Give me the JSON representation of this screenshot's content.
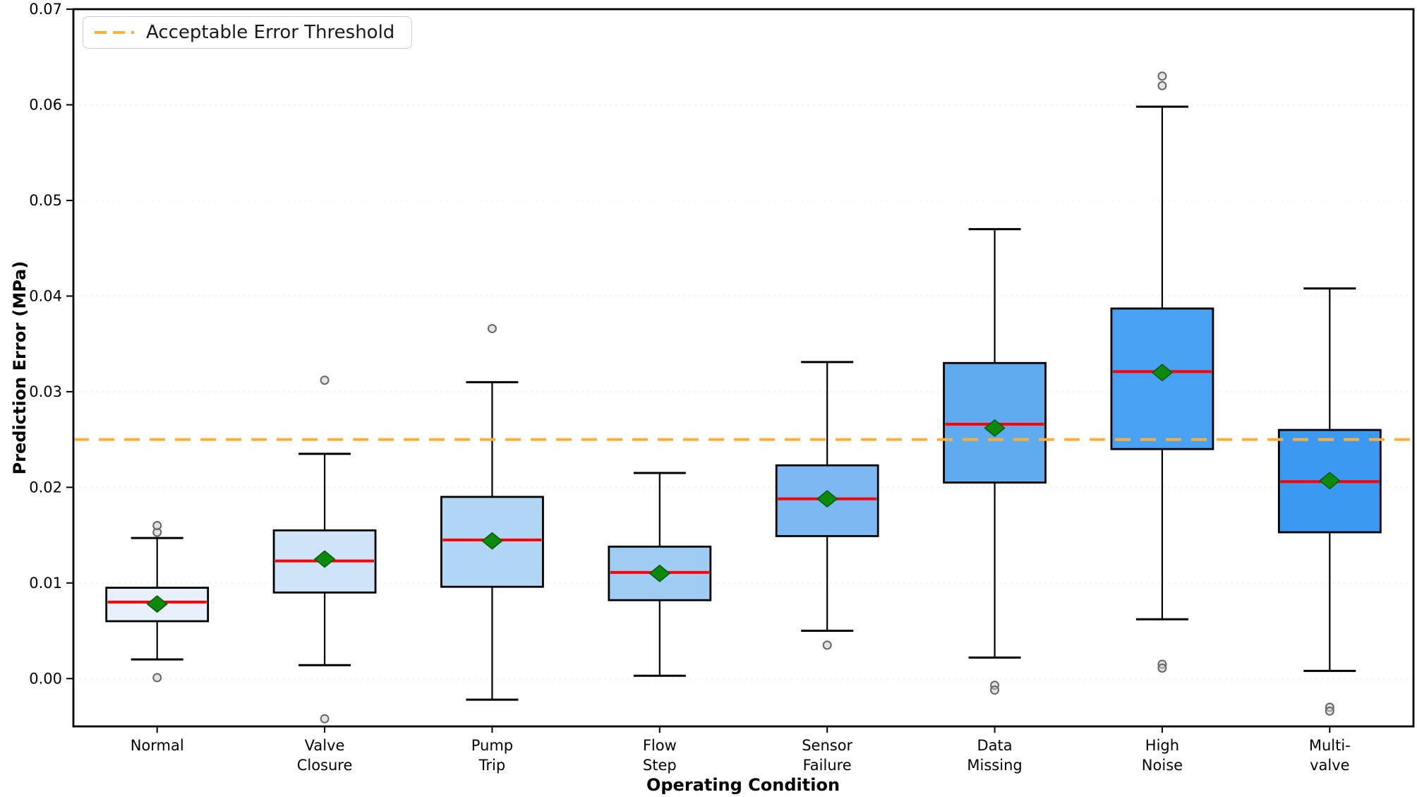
{
  "chart_data": {
    "type": "boxplot",
    "title": "",
    "xlabel": "Operating Condition",
    "ylabel": "Prediction Error (MPa)",
    "ylim": [
      -0.005,
      0.07
    ],
    "yticks": [
      0.0,
      0.01,
      0.02,
      0.03,
      0.04,
      0.05,
      0.06,
      0.07
    ],
    "ytick_labels": [
      "0.00",
      "0.01",
      "0.02",
      "0.03",
      "0.04",
      "0.05",
      "0.06",
      "0.07"
    ],
    "grid": "horizontal-dashed",
    "legend": {
      "label": "Acceptable Error Threshold",
      "position": "upper-left"
    },
    "threshold": {
      "value": 0.025
    },
    "categories": [
      [
        "Normal"
      ],
      [
        "Valve",
        "Closure"
      ],
      [
        "Pump",
        "Trip"
      ],
      [
        "Flow",
        "Step"
      ],
      [
        "Sensor",
        "Failure"
      ],
      [
        "Data",
        "Missing"
      ],
      [
        "High",
        "Noise"
      ],
      [
        "Multi-",
        "valve"
      ]
    ],
    "series": [
      {
        "label": "Normal",
        "whisker_low": 0.002,
        "q1": 0.006,
        "median": 0.008,
        "q3": 0.0095,
        "whisker_high": 0.0147,
        "mean": 0.0078,
        "outliers": [
          0.0001,
          0.0153,
          0.016
        ],
        "fill": "#E7F0FB"
      },
      {
        "label": "Valve Closure",
        "whisker_low": 0.0014,
        "q1": 0.009,
        "median": 0.0123,
        "q3": 0.0155,
        "whisker_high": 0.0235,
        "mean": 0.0125,
        "outliers": [
          0.0312,
          -0.0042
        ],
        "fill": "#CFE4F8"
      },
      {
        "label": "Pump Trip",
        "whisker_low": -0.0022,
        "q1": 0.0096,
        "median": 0.0145,
        "q3": 0.019,
        "whisker_high": 0.031,
        "mean": 0.0144,
        "outliers": [
          0.0366
        ],
        "fill": "#B2D6F5"
      },
      {
        "label": "Flow Step",
        "whisker_low": 0.0003,
        "q1": 0.0082,
        "median": 0.0111,
        "q3": 0.0138,
        "whisker_high": 0.0215,
        "mean": 0.011,
        "outliers": [],
        "fill": "#9FCDF4"
      },
      {
        "label": "Sensor Failure",
        "whisker_low": 0.005,
        "q1": 0.0149,
        "median": 0.0188,
        "q3": 0.0223,
        "whisker_high": 0.0331,
        "mean": 0.0188,
        "outliers": [
          0.0035
        ],
        "fill": "#7CB9F2"
      },
      {
        "label": "Data Missing",
        "whisker_low": 0.0022,
        "q1": 0.0205,
        "median": 0.0266,
        "q3": 0.033,
        "whisker_high": 0.047,
        "mean": 0.0262,
        "outliers": [
          -0.0007,
          -0.0012
        ],
        "fill": "#60AAF0"
      },
      {
        "label": "High Noise",
        "whisker_low": 0.0062,
        "q1": 0.024,
        "median": 0.0321,
        "q3": 0.0387,
        "whisker_high": 0.0598,
        "mean": 0.032,
        "outliers": [
          0.063,
          0.062,
          0.0015,
          0.0011
        ],
        "fill": "#49A1F3"
      },
      {
        "label": "Multi-valve",
        "whisker_low": 0.0008,
        "q1": 0.0153,
        "median": 0.0206,
        "q3": 0.026,
        "whisker_high": 0.0408,
        "mean": 0.0207,
        "outliers": [
          -0.003,
          -0.0034
        ],
        "fill": "#3B99F2"
      }
    ],
    "colors": {
      "median": "#FF0000",
      "mean_fill": "#0C8A0C",
      "mean_edge": "#075507",
      "box_edge": "#000000",
      "whisker": "#000000",
      "outlier_edge": "#666666",
      "outlier_fill": "#cccccc",
      "threshold": "#FFAE38",
      "grid": "#E5E5E5",
      "spine": "#000000",
      "tick_text": "#000000"
    }
  }
}
